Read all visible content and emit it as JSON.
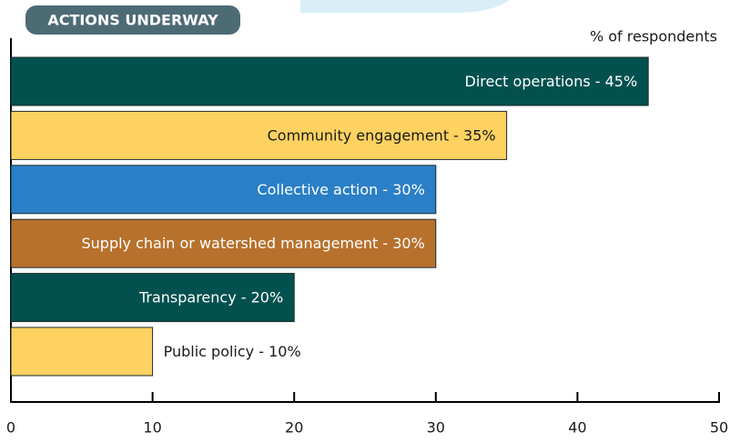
{
  "chart_data": {
    "type": "bar",
    "orientation": "horizontal",
    "title": "ACTIONS UNDERWAY",
    "x_label": "% of respondents",
    "categories": [
      "Direct operations - 45%",
      "Community engagement - 35%",
      "Collective action - 30%",
      "Supply chain or watershed management - 30%",
      "Transparency - 20%",
      "Public policy - 10%"
    ],
    "values": [
      45,
      35,
      30,
      30,
      20,
      10
    ],
    "colors": [
      "#03514f",
      "#fdd261",
      "#2a7fc6",
      "#b7712c",
      "#03514f",
      "#fdd261"
    ],
    "xlim": [
      0,
      50
    ],
    "xticks": [
      0,
      10,
      20,
      30,
      40,
      50
    ],
    "grid": false
  }
}
